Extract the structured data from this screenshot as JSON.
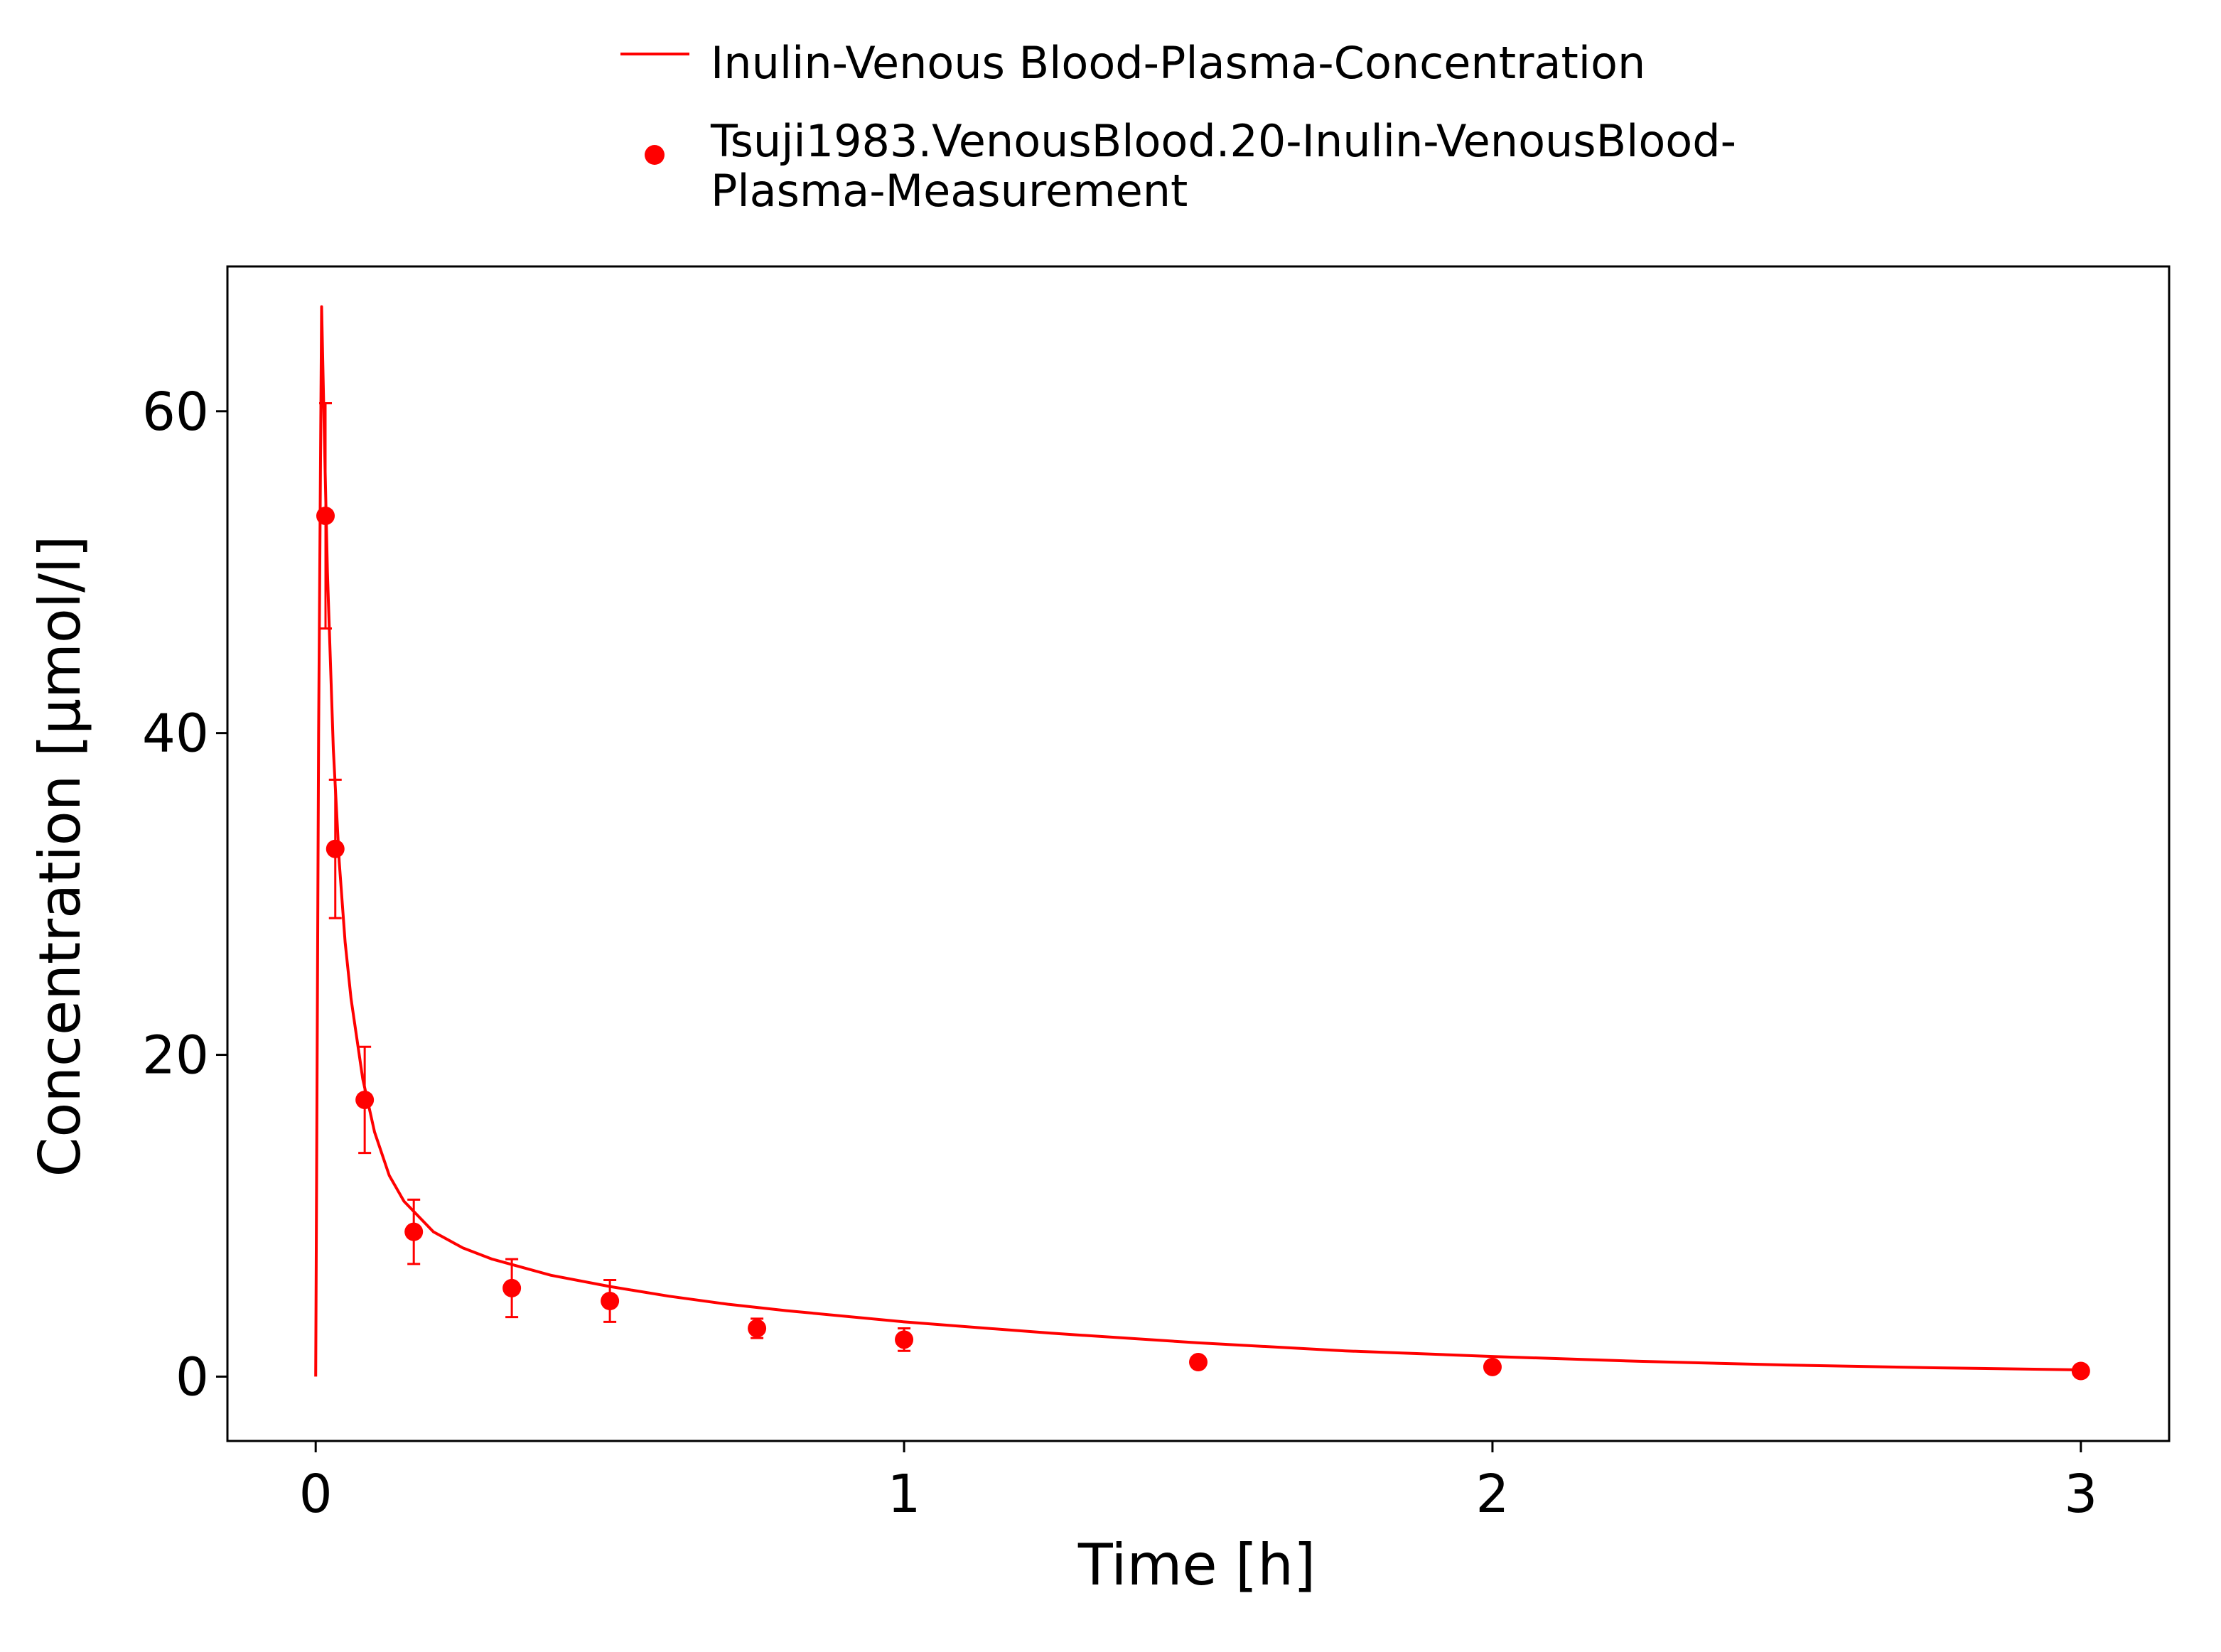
{
  "chart_data": {
    "type": "line",
    "title": "",
    "xlabel": "Time [h]",
    "ylabel": "Concentration [µmol/l]",
    "xlim": [
      -0.15,
      3.15
    ],
    "ylim": [
      -4,
      69
    ],
    "x_ticks": [
      0,
      1,
      2,
      3
    ],
    "y_ticks": [
      0,
      20,
      40,
      60
    ],
    "x_tick_labels": [
      "0",
      "1",
      "2",
      "3"
    ],
    "y_tick_labels": [
      "0",
      "20",
      "40",
      "60"
    ],
    "grid": false,
    "legend_position": "top",
    "color": "#ff0000",
    "series": [
      {
        "name": "Inulin-Venous Blood-Plasma-Concentration",
        "kind": "line",
        "x": [
          0,
          0.005,
          0.01,
          0.015,
          0.02,
          0.03,
          0.04,
          0.05,
          0.06,
          0.08,
          0.1,
          0.125,
          0.15,
          0.2,
          0.25,
          0.3,
          0.35,
          0.4,
          0.5,
          0.6,
          0.7,
          0.8,
          1.0,
          1.25,
          1.5,
          1.75,
          2.0,
          2.25,
          2.5,
          2.75,
          3.0
        ],
        "values": [
          0,
          40,
          66.5,
          58,
          50,
          39,
          32,
          27,
          23.5,
          18.5,
          15.2,
          12.5,
          10.9,
          9.0,
          8.0,
          7.3,
          6.8,
          6.3,
          5.6,
          5.0,
          4.5,
          4.1,
          3.4,
          2.7,
          2.1,
          1.6,
          1.25,
          0.95,
          0.72,
          0.55,
          0.42
        ]
      },
      {
        "name": "Tsuji1983.VenousBlood.20-Inulin-VenousBlood-Plasma-Measurement",
        "legend_lines": [
          "Tsuji1983.VenousBlood.20-Inulin-VenousBlood-",
          "Plasma-Measurement"
        ],
        "kind": "scatter",
        "x": [
          0.0167,
          0.0333,
          0.0833,
          0.1667,
          0.3333,
          0.5,
          0.75,
          1.0,
          1.5,
          2.0,
          3.0
        ],
        "values": [
          53.5,
          32.8,
          17.2,
          9.0,
          5.5,
          4.7,
          3.0,
          2.3,
          0.9,
          0.6,
          0.35
        ],
        "error": [
          7.0,
          4.3,
          3.3,
          2.0,
          1.8,
          1.3,
          0.6,
          0.7,
          0,
          0,
          0
        ]
      }
    ]
  }
}
